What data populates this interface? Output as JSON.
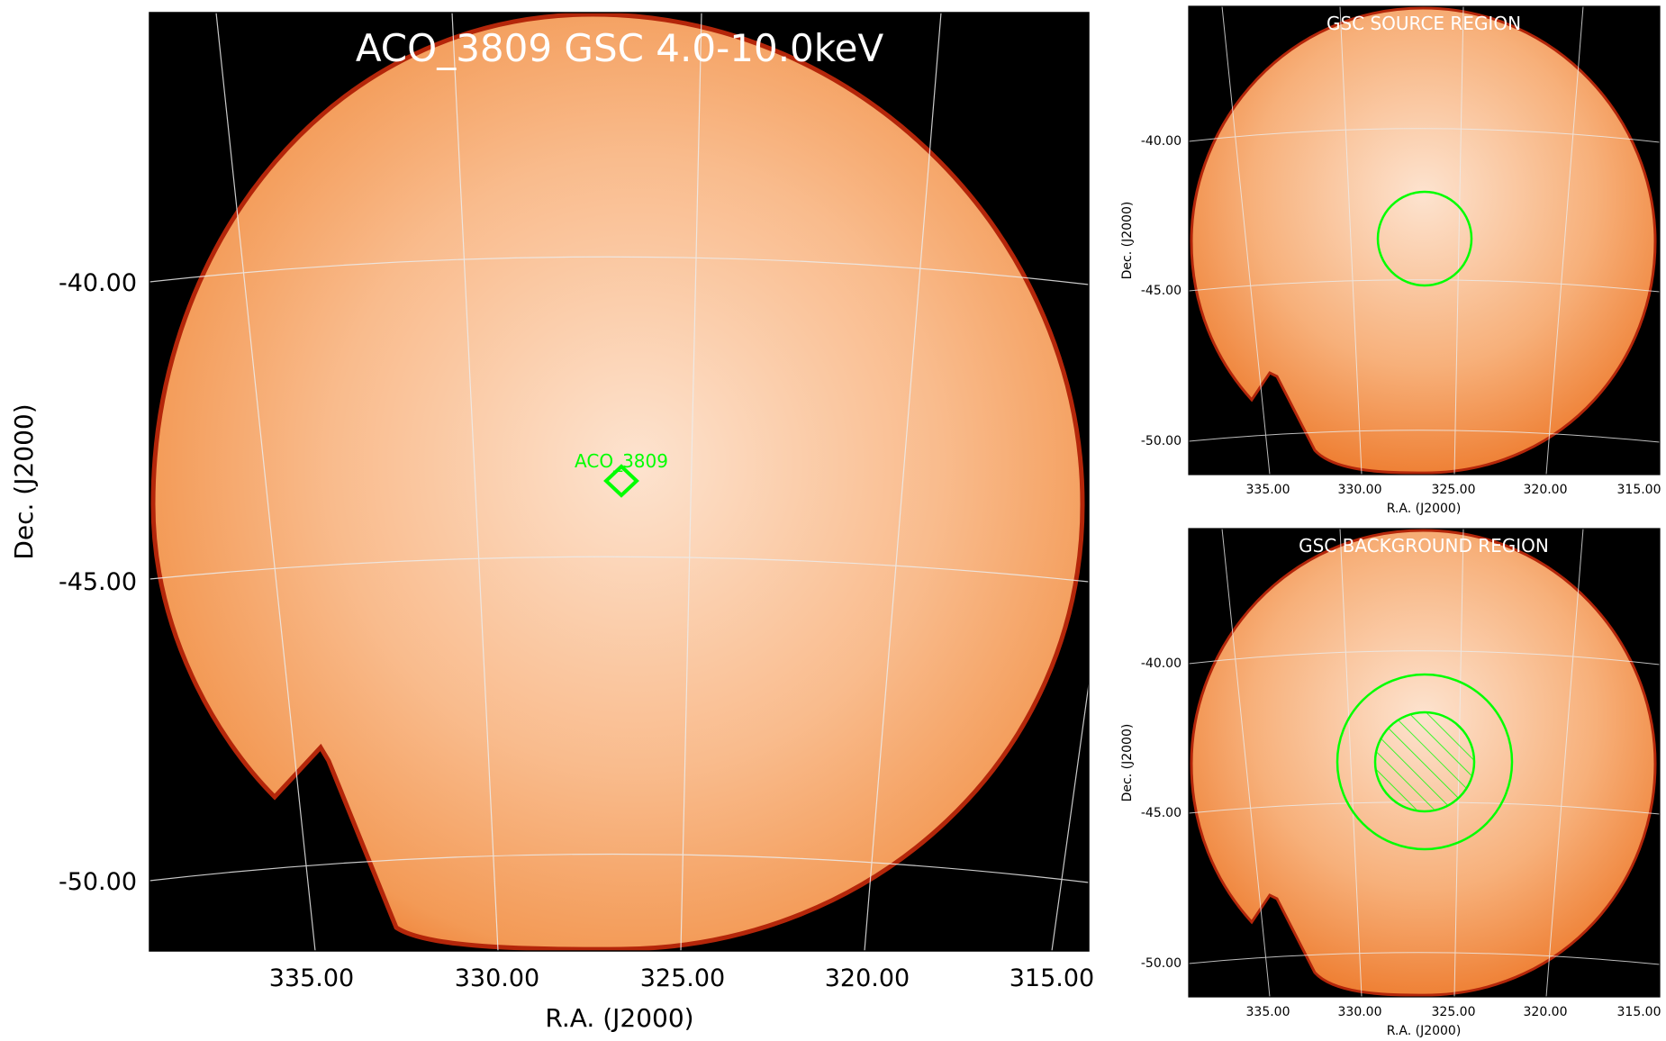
{
  "main_panel": {
    "title": "ACO_3809 GSC 4.0-10.0keV",
    "source_label": "ACO_3809",
    "xlabel": "R.A. (J2000)",
    "ylabel": "Dec. (J2000)",
    "ra_ticks": [
      "335.00",
      "330.00",
      "325.00",
      "320.00",
      "315.00"
    ],
    "dec_ticks": [
      "-40.00",
      "-45.00",
      "-50.00"
    ]
  },
  "source_panel": {
    "title": "GSC SOURCE REGION",
    "xlabel": "R.A. (J2000)",
    "ylabel": "Dec. (J2000)",
    "ra_ticks": [
      "335.00",
      "330.00",
      "325.00",
      "320.00",
      "315.00"
    ],
    "dec_ticks": [
      "-40.00",
      "-45.00",
      "-50.00"
    ]
  },
  "background_panel": {
    "title": "GSC BACKGROUND REGION",
    "xlabel": "R.A. (J2000)",
    "ylabel": "Dec. (J2000)",
    "ra_ticks": [
      "335.00",
      "330.00",
      "325.00",
      "320.00",
      "315.00"
    ],
    "dec_ticks": [
      "-40.00",
      "-45.00",
      "-50.00"
    ]
  },
  "colors": {
    "background": "#000000",
    "map_center": "#fde6d2",
    "map_mid": "#f7a96a",
    "map_edge": "#f07b2e",
    "rim": "#c0300a",
    "region": "#00ff00",
    "grid": "#e8e8e8",
    "title_text": "#ffffff"
  }
}
